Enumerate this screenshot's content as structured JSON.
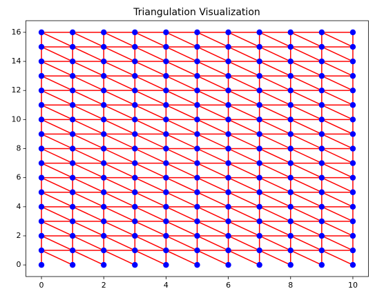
{
  "chart_data": {
    "type": "triangulation",
    "title": "Triangulation Visualization",
    "x_grid": [
      0,
      1,
      2,
      3,
      4,
      5,
      6,
      7,
      8,
      9,
      10
    ],
    "y_grid": [
      0,
      1,
      2,
      3,
      4,
      5,
      6,
      7,
      8,
      9,
      10,
      11,
      12,
      13,
      14,
      15,
      16
    ],
    "point_color": "#0000ff",
    "line_color": "#ff0000",
    "xlim": [
      -0.5,
      10.5
    ],
    "ylim": [
      -0.8,
      16.8
    ],
    "xticks": [
      0,
      2,
      4,
      6,
      8,
      10
    ],
    "yticks": [
      0,
      2,
      4,
      6,
      8,
      10,
      12,
      14,
      16
    ]
  }
}
